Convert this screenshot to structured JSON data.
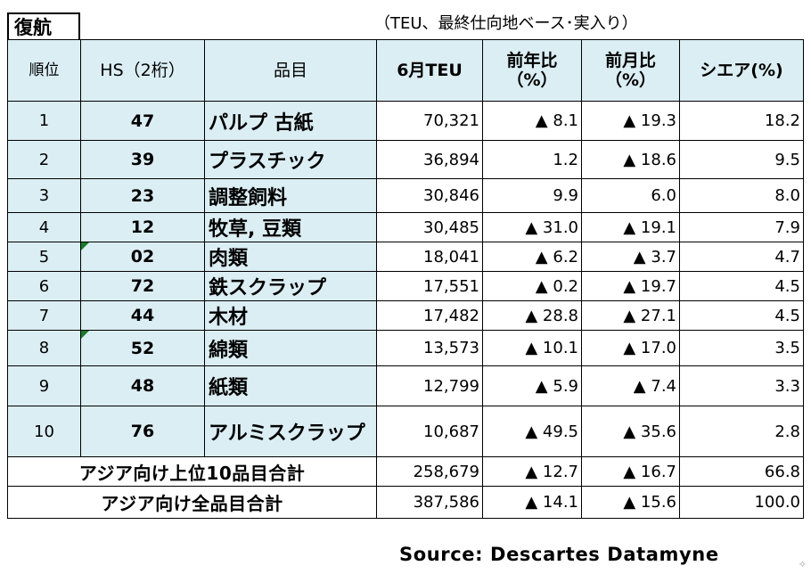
{
  "title": "復航",
  "unit_note": "（TEU、最終仕向地ベース･実入り）",
  "headers": {
    "rank": "順位",
    "hs": "HS（2桁）",
    "item": "品目",
    "teu": "6月TEU",
    "yoy": "前年比（%）",
    "mom": "前月比（%）",
    "share": "シエア(%)"
  },
  "rows": [
    {
      "rank": "1",
      "hs": "47",
      "item": "パルプ 古紙",
      "teu": "70,321",
      "yoy": "▲ 8.1",
      "mom": "▲ 19.3",
      "share": "18.2"
    },
    {
      "rank": "2",
      "hs": "39",
      "item": "プラスチック",
      "teu": "36,894",
      "yoy": "1.2",
      "mom": "▲ 18.6",
      "share": "9.5"
    },
    {
      "rank": "3",
      "hs": "23",
      "item": "調整飼料",
      "teu": "30,846",
      "yoy": "9.9",
      "mom": "6.0",
      "share": "8.0"
    },
    {
      "rank": "4",
      "hs": "12",
      "item": "牧草, 豆類",
      "teu": "30,485",
      "yoy": "▲ 31.0",
      "mom": "▲ 19.1",
      "share": "7.9"
    },
    {
      "rank": "5",
      "hs": "02",
      "item": "肉類",
      "teu": "18,041",
      "yoy": "▲ 6.2",
      "mom": "▲ 3.7",
      "share": "4.7"
    },
    {
      "rank": "6",
      "hs": "72",
      "item": "鉄スクラップ",
      "teu": "17,551",
      "yoy": "▲ 0.2",
      "mom": "▲ 19.7",
      "share": "4.5"
    },
    {
      "rank": "7",
      "hs": "44",
      "item": "木材",
      "teu": "17,482",
      "yoy": "▲ 28.8",
      "mom": "▲ 27.1",
      "share": "4.5"
    },
    {
      "rank": "8",
      "hs": "52",
      "item": "綿類",
      "teu": "13,573",
      "yoy": "▲ 10.1",
      "mom": "▲ 17.0",
      "share": "3.5"
    },
    {
      "rank": "9",
      "hs": "48",
      "item": "紙類",
      "teu": "12,799",
      "yoy": "▲ 5.9",
      "mom": "▲ 7.4",
      "share": "3.3"
    },
    {
      "rank": "10",
      "hs": "76",
      "item": "アルミスクラップ",
      "teu": "10,687",
      "yoy": "▲ 49.5",
      "mom": "▲ 35.6",
      "share": "2.8"
    }
  ],
  "totals": [
    {
      "label": "アジア向け上位10品目合計",
      "teu": "258,679",
      "yoy": "▲ 12.7",
      "mom": "▲ 16.7",
      "share": "66.8"
    },
    {
      "label": "アジア向け全品目合計",
      "teu": "387,586",
      "yoy": "▲ 14.1",
      "mom": "▲ 15.6",
      "share": "100.0"
    }
  ],
  "source": "Source: Descartes Datamyne",
  "colors": {
    "header_fill": "#dbeef4",
    "cell_marker": "#1a7a2a"
  }
}
